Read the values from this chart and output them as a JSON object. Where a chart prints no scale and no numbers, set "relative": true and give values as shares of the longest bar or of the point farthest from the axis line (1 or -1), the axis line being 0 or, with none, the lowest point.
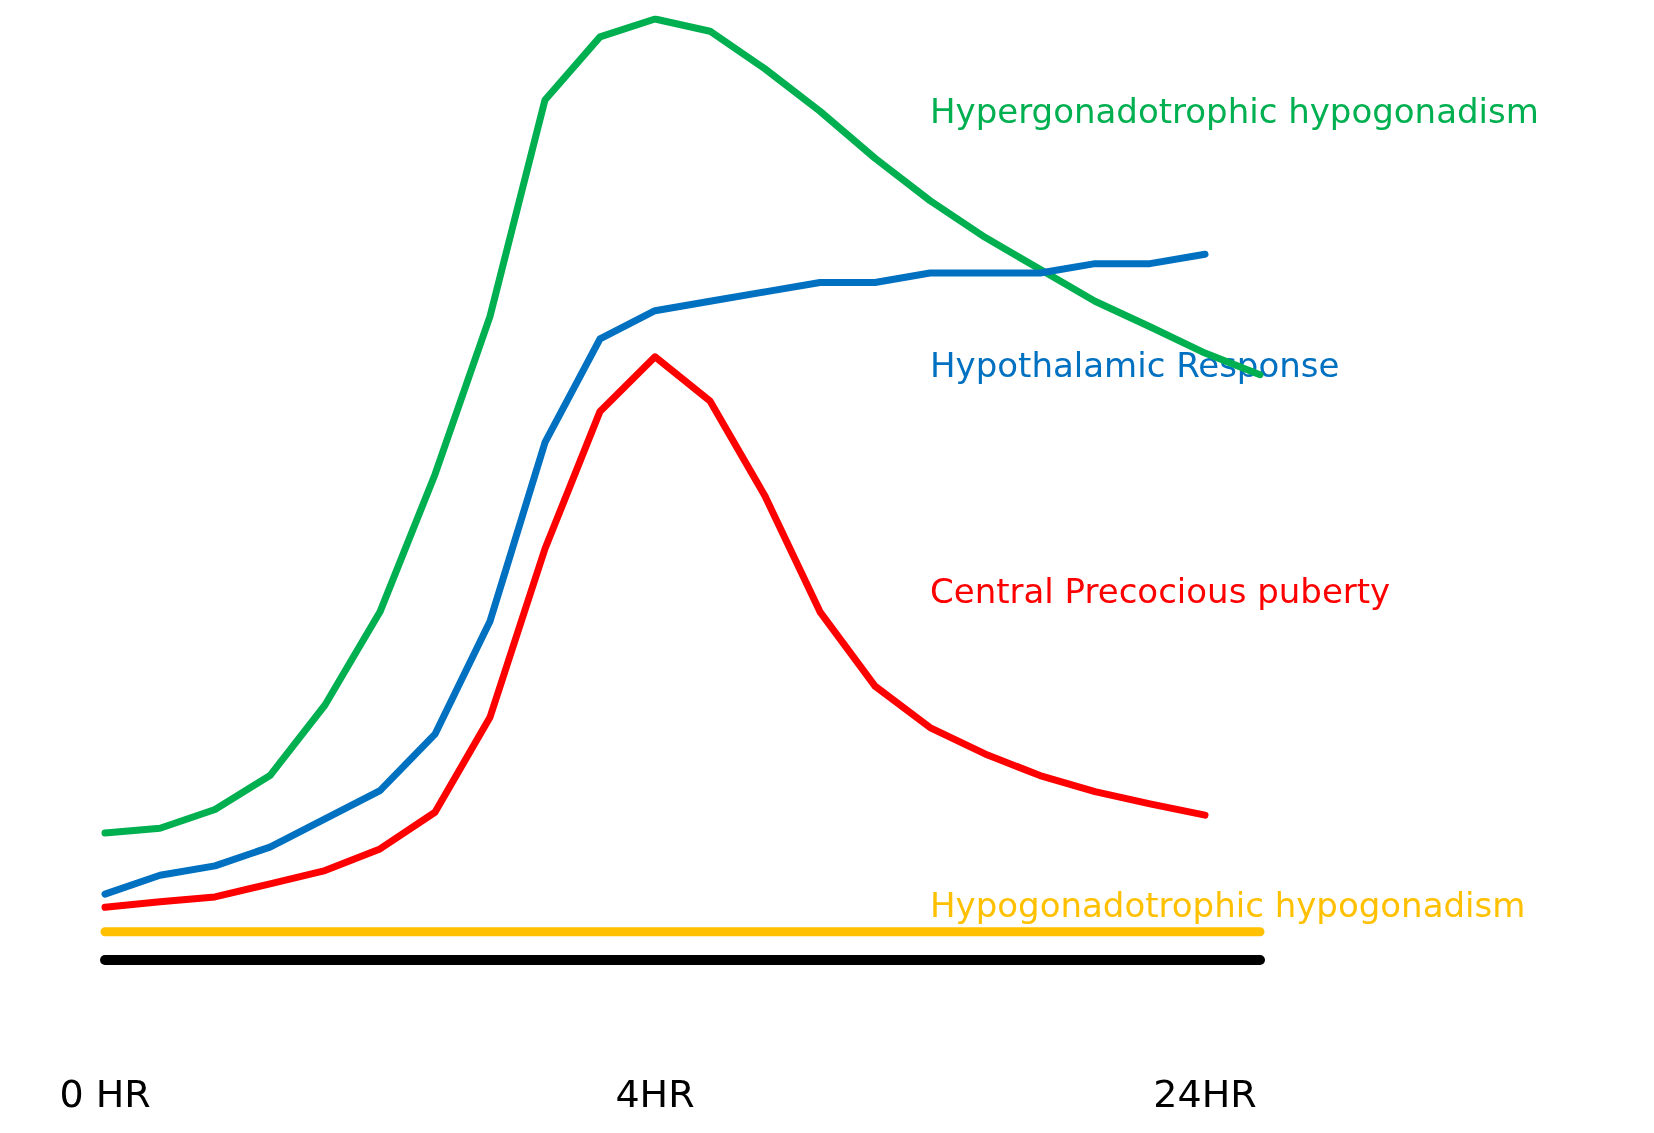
{
  "chart_data": {
    "type": "line",
    "relative": true,
    "marker": "none",
    "grid": false,
    "legend": false,
    "categories": [
      "0 HR",
      null,
      null,
      null,
      null,
      null,
      null,
      null,
      null,
      null,
      "4HR",
      null,
      null,
      null,
      null,
      null,
      null,
      null,
      null,
      null,
      "24HR",
      null
    ],
    "series": [
      {
        "name": "Hypergonadotrophic hypogonadism",
        "color": "#00b050",
        "values": [
          0.135,
          0.14,
          0.16,
          0.196,
          0.271,
          0.37,
          0.516,
          0.684,
          0.914,
          0.981,
          1.0,
          0.987,
          0.947,
          0.902,
          0.852,
          0.807,
          0.768,
          0.734,
          0.7,
          0.673,
          0.645,
          0.622
        ]
      },
      {
        "name": "Hypothalamic Response",
        "color": "#0070c0",
        "values": [
          0.07,
          0.09,
          0.1,
          0.12,
          0.15,
          0.18,
          0.24,
          0.36,
          0.55,
          0.66,
          0.69,
          0.7,
          0.71,
          0.72,
          0.72,
          0.73,
          0.73,
          0.73,
          0.74,
          0.74,
          0.75,
          null
        ]
      },
      {
        "name": "Central Precocious puberty",
        "color": "#ff0000",
        "values": [
          0.056,
          0.062,
          0.067,
          0.081,
          0.095,
          0.118,
          0.157,
          0.258,
          0.437,
          0.583,
          0.641,
          0.594,
          0.493,
          0.37,
          0.291,
          0.247,
          0.219,
          0.196,
          0.179,
          0.166,
          0.154,
          null
        ]
      },
      {
        "name": "Hypogonadotrophic hypogonadism",
        "color": "#ffc000",
        "values": [
          0.03,
          0.03,
          0.03,
          0.03,
          0.03,
          0.03,
          0.03,
          0.03,
          0.03,
          0.03,
          0.03,
          0.03,
          0.03,
          0.03,
          0.03,
          0.03,
          0.03,
          0.03,
          0.03,
          0.03,
          0.03,
          0.03
        ]
      }
    ]
  }
}
